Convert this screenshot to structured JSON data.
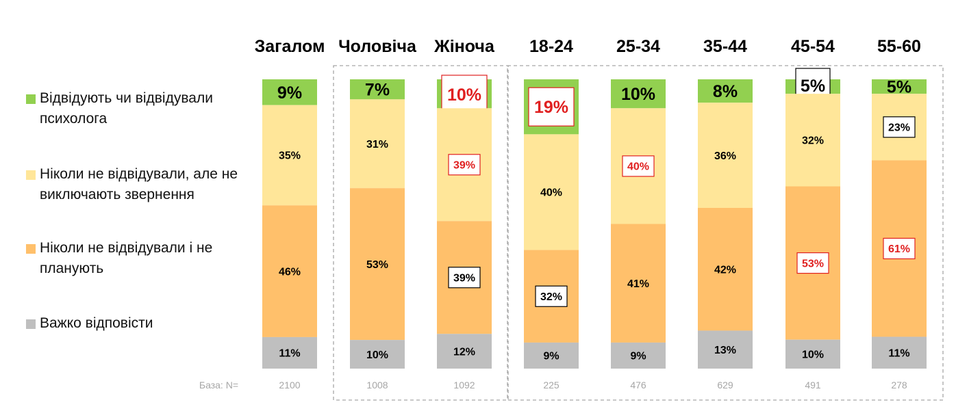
{
  "chart_data": {
    "type": "bar",
    "stacked": true,
    "orientation": "vertical",
    "ylim": [
      0,
      100
    ],
    "categories": [
      "Загалом",
      "Чоловіча",
      "Жіноча",
      "18-24",
      "25-34",
      "35-44",
      "45-54",
      "55-60"
    ],
    "series": [
      {
        "name": "Відвідують чи відвідували психолога",
        "color": "#92d050",
        "values": [
          9,
          7,
          10,
          19,
          10,
          8,
          5,
          5
        ],
        "labels": [
          "9%",
          "7%",
          "10%",
          "19%",
          "10%",
          "8%",
          "5%",
          "5%"
        ]
      },
      {
        "name": "Ніколи не відвідували, але не виключають звернення",
        "color": "#ffe699",
        "values": [
          35,
          31,
          39,
          40,
          40,
          36,
          32,
          23
        ],
        "labels": [
          "35%",
          "31%",
          "39%",
          "40%",
          "40%",
          "36%",
          "32%",
          "23%"
        ]
      },
      {
        "name": "Ніколи не відвідували і не планують",
        "color": "#ffc06b",
        "values": [
          46,
          53,
          39,
          32,
          41,
          42,
          53,
          61
        ],
        "labels": [
          "46%",
          "53%",
          "39%",
          "32%",
          "41%",
          "42%",
          "53%",
          "61%"
        ]
      },
      {
        "name": "Важко відповісти",
        "color": "#bfbfbf",
        "values": [
          11,
          10,
          12,
          9,
          9,
          13,
          10,
          11
        ],
        "labels": [
          "11%",
          "10%",
          "12%",
          "9%",
          "9%",
          "13%",
          "10%",
          "11%"
        ]
      }
    ],
    "highlights": [
      {
        "category": "Жіноча",
        "series": "Відвідують чи відвідували психолога",
        "style": "red"
      },
      {
        "category": "18-24",
        "series": "Відвідують чи відвідували психолога",
        "style": "red"
      },
      {
        "category": "45-54",
        "series": "Відвідують чи відвідували психолога",
        "style": "black"
      },
      {
        "category": "Жіноча",
        "series": "Ніколи не відвідували, але не виключають звернення",
        "style": "red"
      },
      {
        "category": "25-34",
        "series": "Ніколи не відвідували, але не виключають звернення",
        "style": "red"
      },
      {
        "category": "55-60",
        "series": "Ніколи не відвідували, але не виключають звернення",
        "style": "black"
      },
      {
        "category": "Жіноча",
        "series": "Ніколи не відвідували і не планують",
        "style": "black"
      },
      {
        "category": "18-24",
        "series": "Ніколи не відвідували і не планують",
        "style": "black"
      },
      {
        "category": "45-54",
        "series": "Ніколи не відвідували і не планують",
        "style": "red"
      },
      {
        "category": "55-60",
        "series": "Ніколи не відвідували і не планують",
        "style": "red"
      }
    ],
    "groups": [
      {
        "name": "gender",
        "categories": [
          "Чоловіча",
          "Жіноча"
        ]
      },
      {
        "name": "age",
        "categories": [
          "18-24",
          "25-34",
          "35-44",
          "45-54",
          "55-60"
        ]
      }
    ],
    "base_label": "База: N=",
    "base_values": [
      "2100",
      "1008",
      "1092",
      "225",
      "476",
      "629",
      "491",
      "278"
    ],
    "legend_position": "left"
  }
}
